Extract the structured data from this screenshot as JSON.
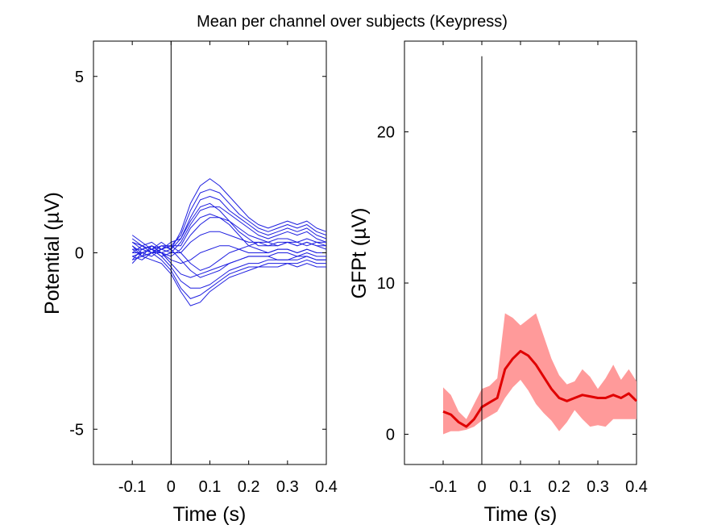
{
  "figure": {
    "title": "Mean per channel over subjects (Keypress)",
    "colors": {
      "channel_line": "#1f1fe0",
      "gfp_line": "#e00000",
      "gfp_band": "#ff9a9a",
      "axes": "#000000"
    }
  },
  "chart_data": [
    {
      "type": "line",
      "xlabel": "Time (s)",
      "ylabel": "Potential (µV)",
      "xlim": [
        -0.2,
        0.4
      ],
      "ylim": [
        -6,
        6
      ],
      "xticks": [
        -0.1,
        0,
        0.1,
        0.2,
        0.3,
        0.4
      ],
      "xtick_labels": [
        "-0.1",
        "0",
        "0.1",
        "0.2",
        "0.3",
        "0.4"
      ],
      "yticks": [
        -5,
        0,
        5
      ],
      "ytick_labels": [
        "-5",
        "0",
        "5"
      ],
      "vline_x": 0,
      "x": [
        -0.1,
        -0.075,
        -0.05,
        -0.025,
        0,
        0.025,
        0.05,
        0.075,
        0.1,
        0.125,
        0.15,
        0.175,
        0.2,
        0.225,
        0.25,
        0.275,
        0.3,
        0.325,
        0.35,
        0.375,
        0.4
      ],
      "series": [
        {
          "values": [
            0.5,
            0.3,
            0.1,
            0.2,
            0.1,
            0.6,
            1.4,
            1.9,
            2.1,
            1.9,
            1.6,
            1.3,
            1.0,
            0.8,
            0.7,
            0.8,
            0.9,
            0.8,
            0.9,
            0.7,
            0.6
          ]
        },
        {
          "values": [
            0.4,
            0.2,
            0.3,
            0.1,
            0.2,
            0.5,
            1.2,
            1.7,
            1.8,
            1.7,
            1.4,
            1.1,
            0.9,
            0.7,
            0.6,
            0.7,
            0.8,
            0.7,
            0.8,
            0.6,
            0.5
          ]
        },
        {
          "values": [
            0.3,
            0.1,
            0.2,
            0.0,
            0.1,
            0.4,
            1.0,
            1.5,
            1.6,
            1.5,
            1.2,
            1.0,
            0.8,
            0.6,
            0.5,
            0.6,
            0.7,
            0.6,
            0.7,
            0.5,
            0.4
          ]
        },
        {
          "values": [
            0.2,
            0.0,
            0.1,
            -0.1,
            0.0,
            0.3,
            0.8,
            1.2,
            1.3,
            1.3,
            1.1,
            0.9,
            0.7,
            0.5,
            0.4,
            0.5,
            0.6,
            0.5,
            0.6,
            0.4,
            0.3
          ]
        },
        {
          "values": [
            0.1,
            0.1,
            0.0,
            0.0,
            -0.1,
            0.1,
            0.5,
            0.8,
            1.0,
            1.0,
            0.9,
            0.7,
            0.5,
            0.4,
            0.3,
            0.4,
            0.4,
            0.3,
            0.4,
            0.3,
            0.2
          ]
        },
        {
          "values": [
            0.0,
            0.0,
            -0.1,
            0.1,
            0.0,
            0.0,
            0.3,
            0.5,
            0.6,
            0.6,
            0.5,
            0.4,
            0.3,
            0.3,
            0.2,
            0.3,
            0.3,
            0.2,
            0.3,
            0.2,
            0.2
          ]
        },
        {
          "values": [
            -0.1,
            0.0,
            0.1,
            0.0,
            -0.2,
            -0.3,
            -0.2,
            0.0,
            0.1,
            0.2,
            0.2,
            0.1,
            0.0,
            0.0,
            0.0,
            0.1,
            0.1,
            0.0,
            0.1,
            0.0,
            0.0
          ]
        },
        {
          "values": [
            -0.2,
            0.1,
            0.2,
            0.0,
            -0.3,
            -0.6,
            -0.7,
            -0.6,
            -0.5,
            -0.4,
            -0.3,
            -0.2,
            -0.1,
            -0.1,
            -0.1,
            0.0,
            0.0,
            -0.1,
            0.0,
            -0.1,
            -0.1
          ]
        },
        {
          "values": [
            -0.3,
            0.0,
            0.1,
            -0.1,
            -0.4,
            -0.8,
            -1.0,
            -1.0,
            -0.9,
            -0.7,
            -0.5,
            -0.4,
            -0.3,
            -0.3,
            -0.2,
            -0.2,
            -0.2,
            -0.2,
            -0.1,
            -0.2,
            -0.2
          ]
        },
        {
          "values": [
            -0.1,
            -0.2,
            0.0,
            -0.2,
            -0.5,
            -1.0,
            -1.3,
            -1.2,
            -1.0,
            -0.8,
            -0.6,
            -0.5,
            -0.4,
            -0.4,
            -0.3,
            -0.3,
            -0.3,
            -0.3,
            -0.2,
            -0.3,
            -0.3
          ]
        },
        {
          "values": [
            0.2,
            -0.1,
            -0.2,
            -0.3,
            -0.6,
            -1.1,
            -1.5,
            -1.4,
            -1.1,
            -0.9,
            -0.7,
            -0.6,
            -0.5,
            -0.4,
            -0.4,
            -0.4,
            -0.3,
            -0.4,
            -0.3,
            -0.4,
            -0.4
          ]
        },
        {
          "values": [
            0.0,
            0.2,
            0.1,
            0.3,
            0.1,
            -0.2,
            -0.5,
            -0.7,
            -0.6,
            -0.5,
            -0.3,
            -0.2,
            -0.1,
            -0.1,
            -0.1,
            -0.2,
            -0.2,
            -0.1,
            -0.1,
            -0.2,
            -0.2
          ]
        },
        {
          "values": [
            0.3,
            0.2,
            0.0,
            0.1,
            0.2,
            0.2,
            0.7,
            1.0,
            1.1,
            1.0,
            0.8,
            0.5,
            0.2,
            0.1,
            0.0,
            0.1,
            0.1,
            0.0,
            0.1,
            0.0,
            0.0
          ]
        },
        {
          "values": [
            0.1,
            -0.1,
            0.2,
            0.1,
            0.3,
            0.4,
            0.9,
            1.3,
            1.4,
            1.2,
            0.9,
            0.6,
            0.4,
            0.2,
            0.2,
            0.2,
            0.3,
            0.2,
            0.3,
            0.2,
            0.1
          ]
        },
        {
          "values": [
            -0.2,
            -0.1,
            0.0,
            0.2,
            0.2,
            0.0,
            -0.3,
            -0.5,
            -0.4,
            -0.2,
            0.0,
            0.1,
            0.2,
            0.3,
            0.3,
            0.2,
            0.3,
            0.3,
            0.2,
            0.3,
            0.3
          ]
        }
      ]
    },
    {
      "type": "area",
      "xlabel": "Time (s)",
      "ylabel": "GFPt (µV)",
      "xlim": [
        -0.2,
        0.4
      ],
      "ylim": [
        -2,
        26
      ],
      "xticks": [
        -0.1,
        0,
        0.1,
        0.2,
        0.3,
        0.4
      ],
      "xtick_labels": [
        "-0.1",
        "0",
        "0.1",
        "0.2",
        "0.3",
        "0.4"
      ],
      "yticks": [
        0,
        10,
        20
      ],
      "ytick_labels": [
        "0",
        "10",
        "20"
      ],
      "vline_x": 0,
      "vline_ymax": 25,
      "x": [
        -0.1,
        -0.08,
        -0.06,
        -0.04,
        -0.02,
        0,
        0.02,
        0.04,
        0.06,
        0.08,
        0.1,
        0.12,
        0.14,
        0.16,
        0.18,
        0.2,
        0.22,
        0.24,
        0.26,
        0.28,
        0.3,
        0.32,
        0.34,
        0.36,
        0.38,
        0.4
      ],
      "series": [
        {
          "values": [
            1.5,
            1.3,
            0.8,
            0.5,
            1.0,
            1.8,
            2.1,
            2.4,
            4.3,
            5.0,
            5.5,
            5.2,
            4.6,
            3.8,
            3.0,
            2.4,
            2.2,
            2.4,
            2.6,
            2.5,
            2.4,
            2.4,
            2.6,
            2.4,
            2.7,
            2.2
          ]
        },
        {
          "values": [
            3.1,
            2.6,
            1.5,
            1.0,
            2.0,
            3.0,
            3.2,
            3.7,
            8.0,
            7.7,
            7.2,
            7.6,
            8.0,
            6.5,
            5.0,
            3.9,
            3.3,
            3.5,
            4.3,
            3.8,
            3.0,
            3.7,
            4.6,
            3.6,
            4.3,
            3.5
          ]
        },
        {
          "values": [
            0.0,
            0.2,
            0.2,
            0.3,
            0.5,
            0.9,
            1.2,
            1.5,
            2.4,
            3.1,
            3.6,
            2.9,
            2.0,
            1.4,
            0.9,
            0.2,
            0.8,
            1.6,
            1.0,
            0.5,
            0.6,
            0.5,
            1.0,
            1.0,
            1.0,
            1.0
          ]
        }
      ]
    }
  ]
}
